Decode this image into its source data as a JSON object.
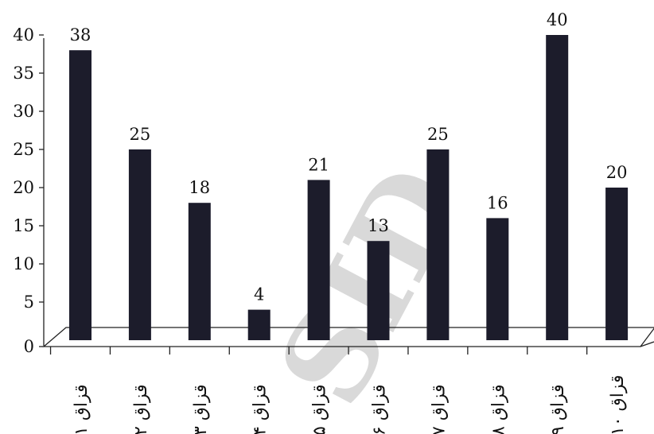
{
  "chart_data": {
    "type": "bar",
    "categories": [
      "قزاق ۱",
      "قزاق ۲",
      "قزاق ۳",
      "قزاق ۴",
      "قزاق ۵",
      "قزاق ۶",
      "قزاق ۷",
      "قزاق ۸",
      "قزاق ۹",
      "قزاق ۱۰"
    ],
    "values": [
      38,
      25,
      18,
      4,
      21,
      13,
      25,
      16,
      40,
      20
    ],
    "yticks": [
      0,
      5,
      10,
      15,
      20,
      25,
      30,
      35,
      40
    ],
    "ylim": [
      0,
      40
    ],
    "title": "",
    "xlabel": "",
    "ylabel": "",
    "grid": false,
    "bar_color": "#1c1c2b",
    "watermark": "SID"
  }
}
